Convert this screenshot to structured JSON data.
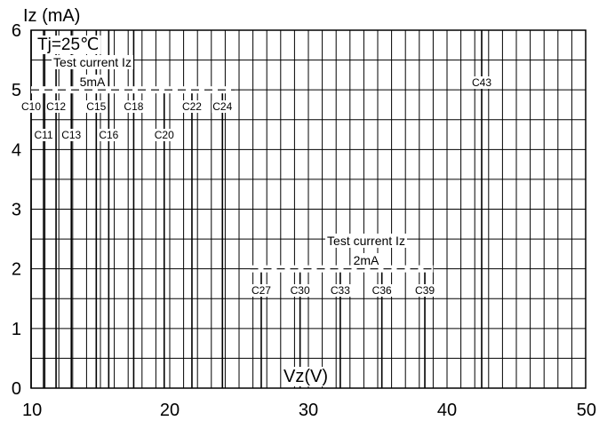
{
  "chart_data": {
    "type": "line",
    "ylabel": "Iz (mA)",
    "xlabel": "Vz(V)",
    "xlim": [
      10,
      50
    ],
    "ylim": [
      0,
      6
    ],
    "xticks": [
      10,
      20,
      30,
      40,
      50
    ],
    "xtick_labels": [
      "10",
      "20",
      "30",
      "40",
      "50"
    ],
    "yticks": [
      0,
      1,
      2,
      3,
      4,
      5,
      6
    ],
    "ytick_labels": [
      "0",
      "1",
      "2",
      "3",
      "4",
      "5",
      "6"
    ],
    "grid": true,
    "condition": "Tj=25℃",
    "annotations": [
      {
        "id": "test-current-5ma",
        "line1": "Test current Iz",
        "line2": "5mA",
        "y": 5
      },
      {
        "id": "test-current-2ma",
        "line1": "Test current Iz",
        "line2": "2mA",
        "y": 2
      }
    ],
    "series": [
      {
        "name": "C10",
        "x": [
          10.0,
          10.0
        ],
        "y": [
          0,
          6
        ]
      },
      {
        "name": "C11",
        "x": [
          10.9,
          10.9
        ],
        "y": [
          0,
          6
        ]
      },
      {
        "name": "C12",
        "x": [
          11.8,
          11.8
        ],
        "y": [
          0,
          6
        ]
      },
      {
        "name": "C13",
        "x": [
          12.9,
          12.9
        ],
        "y": [
          0,
          6
        ]
      },
      {
        "name": "C15",
        "x": [
          14.7,
          14.7
        ],
        "y": [
          0,
          6
        ]
      },
      {
        "name": "C16",
        "x": [
          15.6,
          15.6
        ],
        "y": [
          0,
          6
        ]
      },
      {
        "name": "C18",
        "x": [
          17.4,
          17.4
        ],
        "y": [
          0,
          6
        ]
      },
      {
        "name": "C20",
        "x": [
          19.6,
          19.6
        ],
        "y": [
          0,
          5
        ]
      },
      {
        "name": "C22",
        "x": [
          21.6,
          21.6
        ],
        "y": [
          0,
          5
        ]
      },
      {
        "name": "C24",
        "x": [
          23.8,
          23.8
        ],
        "y": [
          0,
          5
        ]
      },
      {
        "name": "C27",
        "x": [
          26.6,
          26.6
        ],
        "y": [
          0,
          2
        ]
      },
      {
        "name": "C30",
        "x": [
          29.4,
          29.4
        ],
        "y": [
          0,
          2
        ]
      },
      {
        "name": "C33",
        "x": [
          32.3,
          32.3
        ],
        "y": [
          0,
          2
        ]
      },
      {
        "name": "C36",
        "x": [
          35.3,
          35.3
        ],
        "y": [
          0,
          2
        ]
      },
      {
        "name": "C39",
        "x": [
          38.4,
          38.4
        ],
        "y": [
          0,
          2
        ]
      },
      {
        "name": "C43",
        "x": [
          42.5,
          42.5
        ],
        "y": [
          0,
          6
        ]
      }
    ]
  }
}
